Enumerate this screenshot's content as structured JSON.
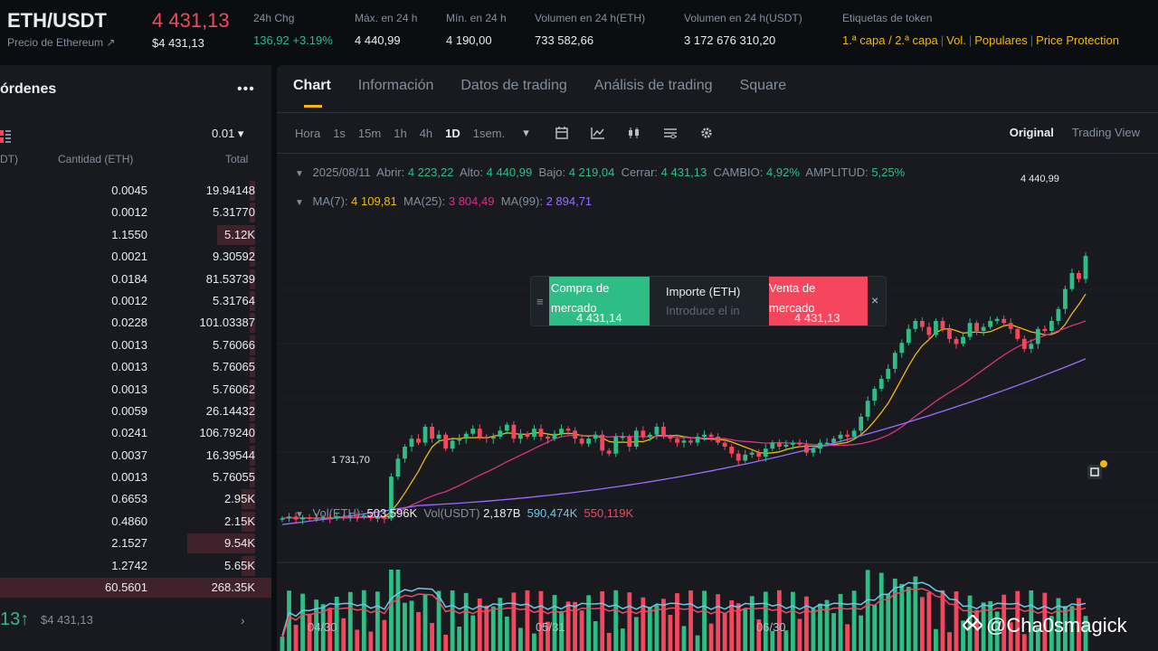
{
  "header": {
    "pair": "ETH/USDT",
    "pair_sub": "Precio de Ethereum ↗",
    "price": "4 431,13",
    "price_usd": "$4 431,13",
    "stats": [
      {
        "label": "24h Chg",
        "value": "136,92 +3.19%",
        "color": "#2ebd85"
      },
      {
        "label": "Máx. en 24 h",
        "value": "4 440,99",
        "color": "#eaecef"
      },
      {
        "label": "Mín. en 24 h",
        "value": "4 190,00",
        "color": "#eaecef"
      },
      {
        "label": "Volumen en 24 h(ETH)",
        "value": "733 582,66",
        "color": "#eaecef"
      },
      {
        "label": "Volumen en 24 h(USDT)",
        "value": "3 172 676 310,20",
        "color": "#eaecef"
      }
    ],
    "tags_label": "Etiquetas de token",
    "tags": [
      "1.ª capa / 2.ª capa",
      "Vol.",
      "Populares",
      "Price Protection"
    ]
  },
  "orderbook": {
    "title": "órdenes",
    "more": "•••",
    "step": "0.01 ▾",
    "col_price": "DT)",
    "col_qty": "Cantidad (ETH)",
    "col_total": "Total",
    "rows": [
      {
        "qty": "0.0045",
        "total": "19.94148",
        "depth": 0.02
      },
      {
        "qty": "0.0012",
        "total": "5.31770",
        "depth": 0.02
      },
      {
        "qty": "1.1550",
        "total": "5.12K",
        "depth": 0.14
      },
      {
        "qty": "0.0021",
        "total": "9.30592",
        "depth": 0.02
      },
      {
        "qty": "0.0184",
        "total": "81.53739",
        "depth": 0.02
      },
      {
        "qty": "0.0012",
        "total": "5.31764",
        "depth": 0.02
      },
      {
        "qty": "0.0228",
        "total": "101.03387",
        "depth": 0.02
      },
      {
        "qty": "0.0013",
        "total": "5.76066",
        "depth": 0.02
      },
      {
        "qty": "0.0013",
        "total": "5.76065",
        "depth": 0.02
      },
      {
        "qty": "0.0013",
        "total": "5.76062",
        "depth": 0.02
      },
      {
        "qty": "0.0059",
        "total": "26.14432",
        "depth": 0.02
      },
      {
        "qty": "0.0241",
        "total": "106.79240",
        "depth": 0.02
      },
      {
        "qty": "0.0037",
        "total": "16.39544",
        "depth": 0.02
      },
      {
        "qty": "0.0013",
        "total": "5.76055",
        "depth": 0.02
      },
      {
        "qty": "0.6653",
        "total": "2.95K",
        "depth": 0.05
      },
      {
        "qty": "0.4860",
        "total": "2.15K",
        "depth": 0.05
      },
      {
        "qty": "2.1527",
        "total": "9.54K",
        "depth": 0.25
      },
      {
        "qty": "1.2742",
        "total": "5.65K",
        "depth": 0.05
      },
      {
        "qty": "60.5601",
        "total": "268.35K",
        "depth": 1.0
      }
    ],
    "last_price": "13",
    "last_arrow": "↑",
    "last_usd": "$4 431,13",
    "chevron": "›"
  },
  "chart_panel": {
    "tabs": [
      "Chart",
      "Información",
      "Datos de trading",
      "Análisis de trading",
      "Square"
    ],
    "active_tab": 0,
    "intervals": [
      "Hora",
      "1s",
      "15m",
      "1h",
      "4h",
      "1D",
      "1sem."
    ],
    "selected_interval": "1D",
    "dropdown": "▾",
    "views": [
      "Original",
      "Trading View"
    ],
    "selected_view": "Original",
    "ohlc": {
      "date": "2025/08/11",
      "open_label": "Abrir:",
      "open": "4 223,22",
      "high_label": "Alto:",
      "high": "4 440,99",
      "low_label": "Bajo:",
      "low": "4 219,04",
      "close_label": "Cerrar:",
      "close": "4 431,13",
      "change_label": "CAMBIO:",
      "change": "4,92%",
      "amp_label": "AMPLITUD:",
      "amp": "5,25%"
    },
    "ma": {
      "ma7_label": "MA(7):",
      "ma7": "4 109,81",
      "ma25_label": "MA(25):",
      "ma25": "3 804,49",
      "ma99_label": "MA(99):",
      "ma99": "2 894,71"
    },
    "vol": {
      "vol_eth_label": "Vol(ETH):",
      "vol_eth": "503,596K",
      "vol_usdt_label": "Vol(USDT)",
      "vol_usdt": "2,187B",
      "ma_a": "590,474K",
      "ma_b": "550,119K"
    },
    "high_marker": "4 440,99",
    "low_marker": "1 731,70",
    "x_labels": [
      "04/30",
      "05/31",
      "06/30"
    ],
    "colors": {
      "up": "#2ebd85",
      "down": "#f6465d",
      "ma7": "#f0b90b",
      "ma25": "#d63384",
      "ma99": "#9d6cff",
      "vol_ma1": "#6ec6e8",
      "vol_ma2": "#f6465d"
    }
  },
  "quick_trade": {
    "buy_label": "Compra de mercado",
    "buy_price": "4 431,14",
    "amount_label": "Importe (ETH)",
    "amount_placeholder": "Introduce el in",
    "sell_label": "Venta de mercado",
    "sell_price": "4 431,13",
    "close": "×",
    "handle": "≡"
  },
  "watermark": "@Cha0smagick",
  "chart_data": {
    "type": "candlestick",
    "x_labels": [
      "04/30",
      "05/31",
      "06/30"
    ],
    "close_series": [
      1800,
      1820,
      1790,
      1810,
      1800,
      1805,
      1810,
      1800,
      1815,
      1810,
      1820,
      1815,
      1830,
      1805,
      1810,
      1800,
      2220,
      2400,
      2520,
      2600,
      2560,
      2720,
      2600,
      2640,
      2500,
      2580,
      2600,
      2650,
      2700,
      2620,
      2600,
      2620,
      2680,
      2740,
      2600,
      2650,
      2620,
      2700,
      2620,
      2600,
      2650,
      2700,
      2680,
      2600,
      2550,
      2600,
      2640,
      2480,
      2450,
      2620,
      2620,
      2520,
      2680,
      2620,
      2640,
      2720,
      2620,
      2600,
      2560,
      2580,
      2560,
      2620,
      2640,
      2620,
      2560,
      2520,
      2450,
      2380,
      2440,
      2460,
      2420,
      2500,
      2560,
      2520,
      2540,
      2560,
      2540,
      2460,
      2500,
      2560,
      2560,
      2600,
      2640,
      2620,
      2680,
      2820,
      2980,
      3100,
      3200,
      3300,
      3460,
      3560,
      3700,
      3780,
      3720,
      3640,
      3780,
      3700,
      3600,
      3550,
      3620,
      3760,
      3680,
      3720,
      3780,
      3800,
      3760,
      3700,
      3600,
      3500,
      3550,
      3700,
      3680,
      3780,
      3900,
      4100,
      4260,
      4200,
      4431
    ]
  }
}
